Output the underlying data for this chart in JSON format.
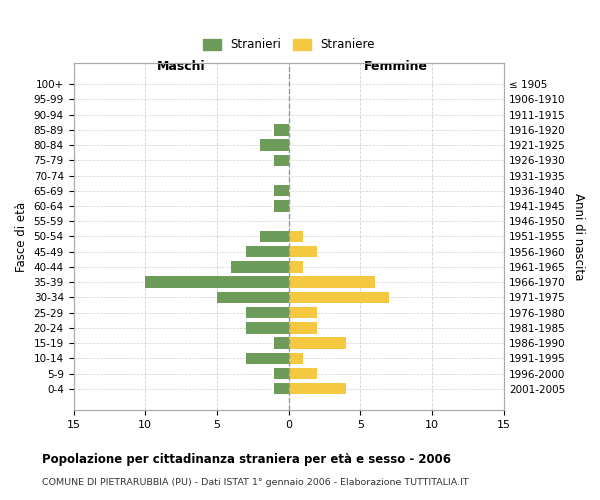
{
  "age_groups": [
    "100+",
    "95-99",
    "90-94",
    "85-89",
    "80-84",
    "75-79",
    "70-74",
    "65-69",
    "60-64",
    "55-59",
    "50-54",
    "45-49",
    "40-44",
    "35-39",
    "30-34",
    "25-29",
    "20-24",
    "15-19",
    "10-14",
    "5-9",
    "0-4"
  ],
  "birth_years": [
    "≤ 1905",
    "1906-1910",
    "1911-1915",
    "1916-1920",
    "1921-1925",
    "1926-1930",
    "1931-1935",
    "1936-1940",
    "1941-1945",
    "1946-1950",
    "1951-1955",
    "1956-1960",
    "1961-1965",
    "1966-1970",
    "1971-1975",
    "1976-1980",
    "1981-1985",
    "1986-1990",
    "1991-1995",
    "1996-2000",
    "2001-2005"
  ],
  "maschi": [
    0,
    0,
    0,
    1,
    2,
    1,
    0,
    1,
    1,
    0,
    2,
    3,
    4,
    10,
    5,
    3,
    3,
    1,
    3,
    1,
    1
  ],
  "femmine": [
    0,
    0,
    0,
    0,
    0,
    0,
    0,
    0,
    0,
    0,
    1,
    2,
    1,
    6,
    7,
    2,
    2,
    4,
    1,
    2,
    4
  ],
  "color_maschi": "#6d9b5a",
  "color_femmine": "#f5c842",
  "title": "Popolazione per cittadinanza straniera per età e sesso - 2006",
  "subtitle": "COMUNE DI PIETRARUBBIA (PU) - Dati ISTAT 1° gennaio 2006 - Elaborazione TUTTITALIA.IT",
  "xlabel_left": "Maschi",
  "xlabel_right": "Femmine",
  "ylabel_left": "Fasce di età",
  "ylabel_right": "Anni di nascita",
  "legend_maschi": "Stranieri",
  "legend_femmine": "Straniere",
  "xlim": 15,
  "background_color": "#ffffff",
  "grid_color": "#cccccc",
  "axis_color": "#aaaaaa",
  "bar_height": 0.75
}
